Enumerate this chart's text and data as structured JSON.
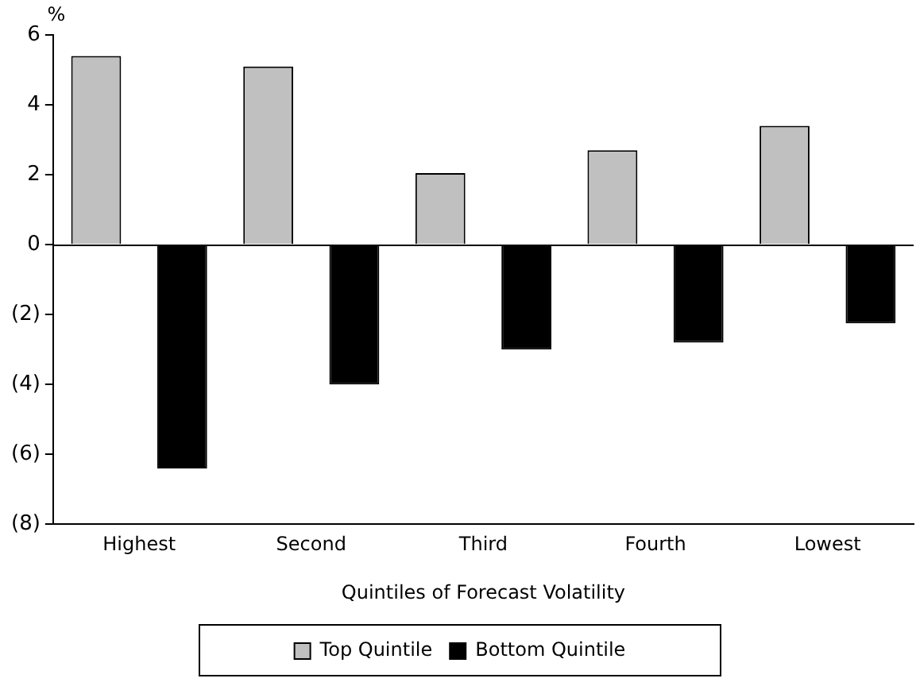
{
  "chart_data": {
    "type": "bar",
    "categories": [
      "Highest",
      "Second",
      "Third",
      "Fourth",
      "Lowest"
    ],
    "xlabel": "Quintiles of Forecast Volatility",
    "ylabel": "%",
    "series": [
      {
        "name": "Top Quintile",
        "color": "#c0c0c0",
        "values": [
          5.4,
          5.1,
          2.05,
          2.7,
          3.4
        ]
      },
      {
        "name": "Bottom Quintile",
        "color": "#000000",
        "values": [
          -6.4,
          -4.0,
          -3.0,
          -2.8,
          -2.25
        ]
      }
    ],
    "ylim": [
      -8,
      6
    ],
    "yticks": [
      {
        "value": -8,
        "label": "(8)"
      },
      {
        "value": -6,
        "label": "(6)"
      },
      {
        "value": -4,
        "label": "(4)"
      },
      {
        "value": -2,
        "label": "(2)"
      },
      0,
      2,
      4,
      6
    ],
    "ref_lines": [
      {
        "axis": "y",
        "value": 0
      }
    ],
    "grid": false,
    "legend": "bottom"
  }
}
